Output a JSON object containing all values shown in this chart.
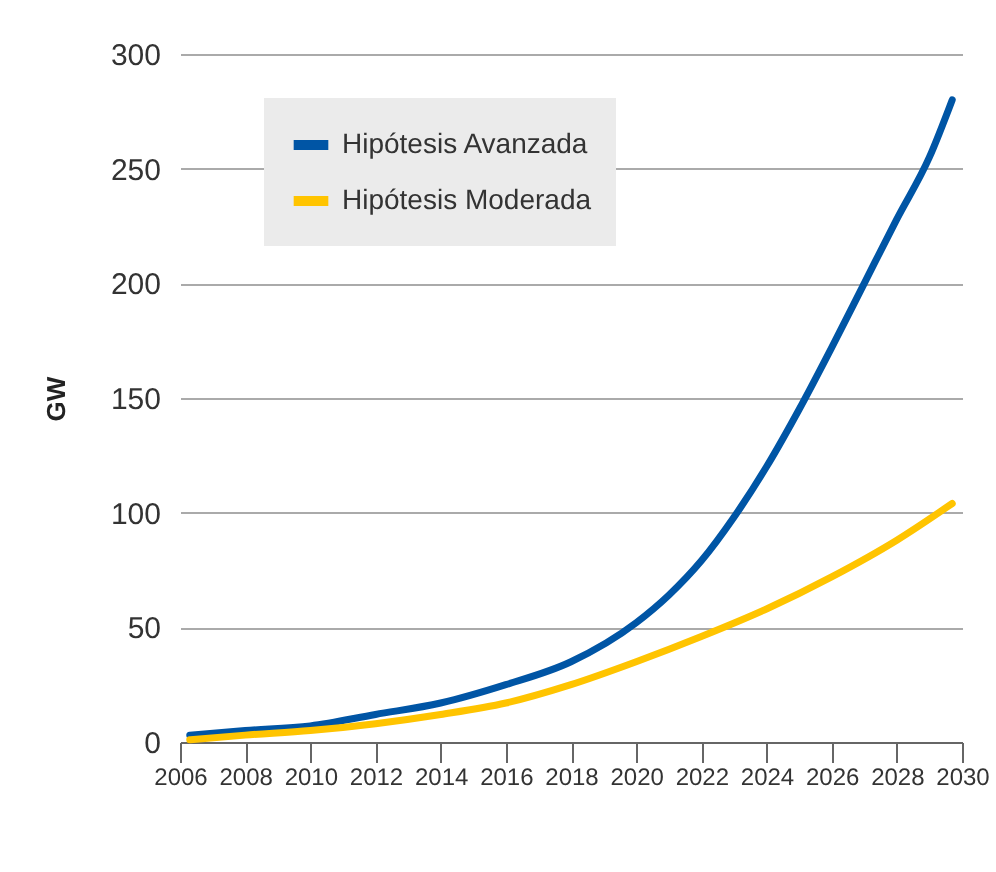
{
  "chart_data": {
    "type": "line",
    "ylabel": "GW",
    "series": [
      {
        "name": "Hipótesis Avanzada",
        "color": "#0055a5",
        "x": [
          2006.3,
          2008,
          2010,
          2012,
          2014,
          2016,
          2018,
          2020,
          2021,
          2022,
          2023,
          2024,
          2025,
          2026,
          2027,
          2028,
          2029,
          2029.7
        ],
        "values": [
          3,
          5,
          7,
          12,
          17,
          25,
          35,
          52,
          64,
          79,
          98,
          120,
          145,
          172,
          200,
          228,
          255,
          280
        ]
      },
      {
        "name": "Hipótesis Moderada",
        "color": "#ffc400",
        "x": [
          2006.3,
          2008,
          2010,
          2012,
          2014,
          2016,
          2018,
          2020,
          2022,
          2024,
          2026,
          2028,
          2029.7
        ],
        "values": [
          1,
          3,
          5,
          8,
          12,
          17,
          25,
          35,
          46,
          58,
          72,
          88,
          104
        ]
      }
    ],
    "xlim": [
      2006,
      2030
    ],
    "xticks": [
      2006,
      2008,
      2010,
      2012,
      2014,
      2016,
      2018,
      2020,
      2022,
      2024,
      2026,
      2028,
      2030
    ],
    "ylim": [
      0,
      300
    ],
    "yticks": [
      0,
      50,
      100,
      150,
      200,
      250,
      300
    ],
    "grid": "y",
    "legend": "top left",
    "line_style": "solid",
    "marker": "none"
  }
}
